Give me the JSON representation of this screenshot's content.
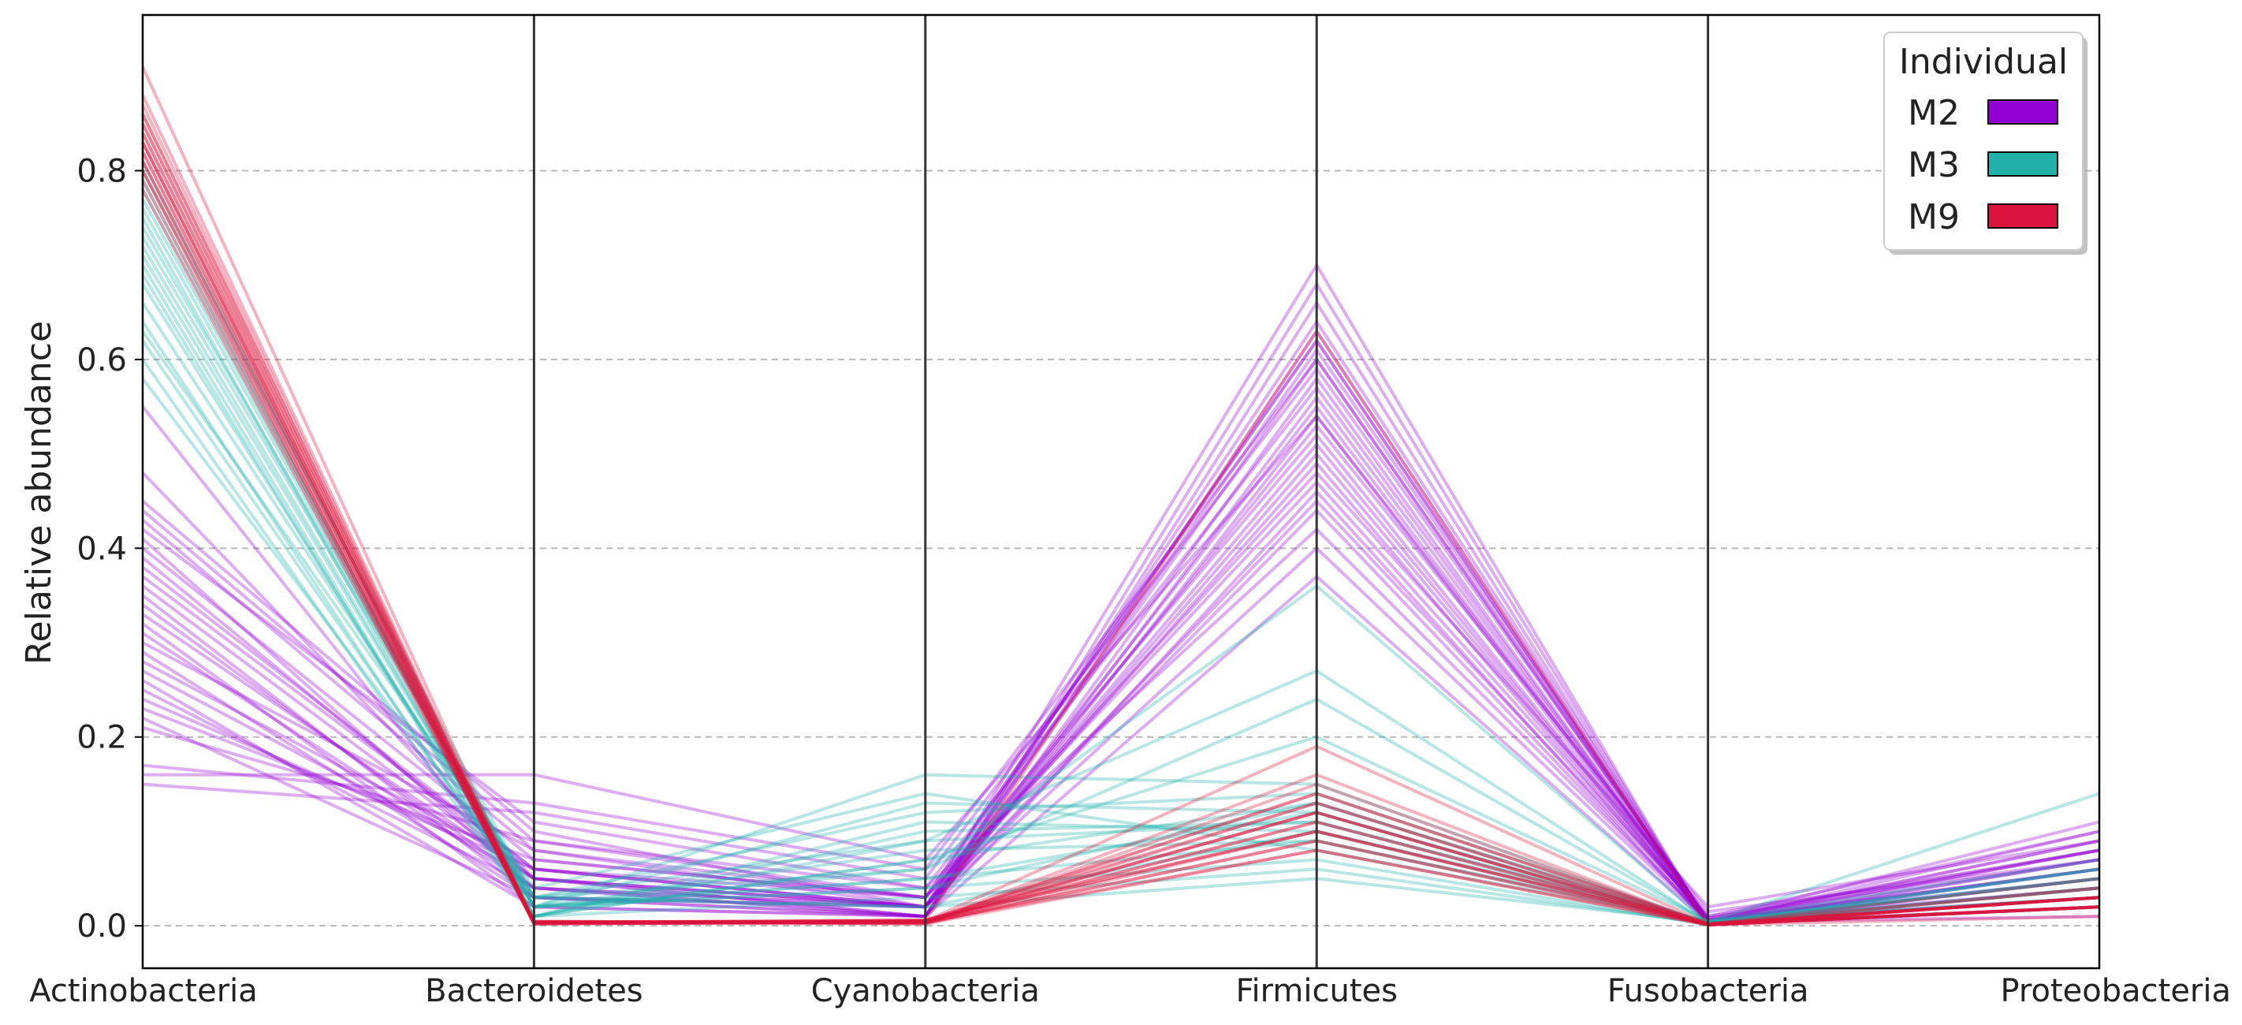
{
  "chart_data": {
    "type": "parallel-coordinates",
    "title": "",
    "xlabel": "",
    "ylabel": "Relative abundance",
    "categories": [
      "Actinobacteria",
      "Bacteroidetes",
      "Cyanobacteria",
      "Firmicutes",
      "Fusobacteria",
      "Proteobacteria"
    ],
    "ylim": [
      -0.045,
      0.965
    ],
    "yticks": [
      "0.0",
      "0.2",
      "0.4",
      "0.6",
      "0.8"
    ],
    "grid": "horizontal-dashed",
    "legend": {
      "title": "Individual",
      "placement": "top-right",
      "entries": [
        {
          "name": "M2",
          "color": "#9400D3"
        },
        {
          "name": "M3",
          "color": "#20B2AA"
        },
        {
          "name": "M9",
          "color": "#DC143C"
        }
      ]
    },
    "series": [
      {
        "name": "M2",
        "color": "#9400D3",
        "values": [
          [
            0.45,
            0.1,
            0.02,
            0.45,
            0.01,
            0.08
          ],
          [
            0.44,
            0.09,
            0.03,
            0.47,
            0.008,
            0.07
          ],
          [
            0.43,
            0.08,
            0.02,
            0.5,
            0.005,
            0.09
          ],
          [
            0.42,
            0.11,
            0.04,
            0.42,
            0.006,
            0.06
          ],
          [
            0.4,
            0.07,
            0.03,
            0.52,
            0.004,
            0.1
          ],
          [
            0.37,
            0.06,
            0.02,
            0.55,
            0.003,
            0.08
          ],
          [
            0.36,
            0.05,
            0.01,
            0.58,
            0.002,
            0.07
          ],
          [
            0.34,
            0.04,
            0.02,
            0.6,
            0.003,
            0.05
          ],
          [
            0.3,
            0.08,
            0.03,
            0.62,
            0.004,
            0.06
          ],
          [
            0.28,
            0.06,
            0.02,
            0.64,
            0.005,
            0.04
          ],
          [
            0.27,
            0.05,
            0.01,
            0.66,
            0.002,
            0.03
          ],
          [
            0.25,
            0.04,
            0.02,
            0.7,
            0.001,
            0.02
          ],
          [
            0.23,
            0.07,
            0.03,
            0.62,
            0.003,
            0.07
          ],
          [
            0.22,
            0.03,
            0.01,
            0.68,
            0.002,
            0.06
          ],
          [
            0.21,
            0.09,
            0.04,
            0.57,
            0.004,
            0.09
          ],
          [
            0.17,
            0.13,
            0.06,
            0.6,
            0.006,
            0.11
          ],
          [
            0.16,
            0.16,
            0.07,
            0.54,
            0.01,
            0.1
          ],
          [
            0.15,
            0.12,
            0.05,
            0.59,
            0.008,
            0.08
          ],
          [
            0.48,
            0.05,
            0.02,
            0.4,
            0.005,
            0.06
          ],
          [
            0.55,
            0.03,
            0.01,
            0.37,
            0.003,
            0.05
          ],
          [
            0.38,
            0.06,
            0.03,
            0.48,
            0.02,
            0.09
          ],
          [
            0.33,
            0.05,
            0.02,
            0.53,
            0.015,
            0.07
          ],
          [
            0.31,
            0.04,
            0.01,
            0.56,
            0.004,
            0.08
          ],
          [
            0.29,
            0.03,
            0.02,
            0.61,
            0.006,
            0.05
          ],
          [
            0.26,
            0.02,
            0.01,
            0.63,
            0.003,
            0.04
          ],
          [
            0.24,
            0.06,
            0.02,
            0.51,
            0.005,
            0.03
          ],
          [
            0.41,
            0.04,
            0.01,
            0.46,
            0.002,
            0.02
          ],
          [
            0.39,
            0.05,
            0.02,
            0.44,
            0.004,
            0.01
          ],
          [
            0.35,
            0.03,
            0.02,
            0.49,
            0.003,
            0.06
          ],
          [
            0.32,
            0.02,
            0.01,
            0.54,
            0.002,
            0.05
          ]
        ]
      },
      {
        "name": "M3",
        "color": "#20B2AA",
        "values": [
          [
            0.8,
            0.03,
            0.02,
            0.1,
            0.005,
            0.05
          ],
          [
            0.78,
            0.02,
            0.05,
            0.12,
            0.003,
            0.04
          ],
          [
            0.76,
            0.02,
            0.08,
            0.09,
            0.002,
            0.06
          ],
          [
            0.75,
            0.01,
            0.1,
            0.11,
            0.004,
            0.03
          ],
          [
            0.73,
            0.03,
            0.12,
            0.14,
            0.003,
            0.05
          ],
          [
            0.72,
            0.02,
            0.16,
            0.15,
            0.002,
            0.04
          ],
          [
            0.7,
            0.01,
            0.07,
            0.2,
            0.005,
            0.07
          ],
          [
            0.68,
            0.02,
            0.06,
            0.24,
            0.004,
            0.06
          ],
          [
            0.66,
            0.03,
            0.09,
            0.27,
            0.003,
            0.05
          ],
          [
            0.64,
            0.01,
            0.11,
            0.1,
            0.002,
            0.04
          ],
          [
            0.62,
            0.02,
            0.04,
            0.13,
            0.003,
            0.03
          ],
          [
            0.6,
            0.01,
            0.03,
            0.06,
            0.002,
            0.02
          ],
          [
            0.58,
            0.03,
            0.02,
            0.05,
            0.004,
            0.14
          ],
          [
            0.63,
            0.04,
            0.14,
            0.08,
            0.003,
            0.05
          ],
          [
            0.77,
            0.02,
            0.13,
            0.12,
            0.002,
            0.06
          ],
          [
            0.79,
            0.01,
            0.09,
            0.11,
            0.002,
            0.04
          ],
          [
            0.74,
            0.03,
            0.06,
            0.36,
            0.003,
            0.05
          ],
          [
            0.71,
            0.02,
            0.05,
            0.09,
            0.004,
            0.03
          ],
          [
            0.69,
            0.01,
            0.07,
            0.13,
            0.002,
            0.04
          ],
          [
            0.81,
            0.02,
            0.04,
            0.07,
            0.001,
            0.02
          ]
        ]
      },
      {
        "name": "M9",
        "color": "#DC143C",
        "values": [
          [
            0.91,
            0.004,
            0.004,
            0.08,
            0.001,
            0.03
          ],
          [
            0.88,
            0.003,
            0.003,
            0.09,
            0.001,
            0.02
          ],
          [
            0.86,
            0.005,
            0.002,
            0.1,
            0.002,
            0.03
          ],
          [
            0.85,
            0.004,
            0.005,
            0.12,
            0.001,
            0.02
          ],
          [
            0.84,
            0.003,
            0.006,
            0.13,
            0.001,
            0.03
          ],
          [
            0.83,
            0.002,
            0.004,
            0.14,
            0.002,
            0.02
          ],
          [
            0.82,
            0.004,
            0.003,
            0.15,
            0.001,
            0.03
          ],
          [
            0.81,
            0.003,
            0.005,
            0.19,
            0.002,
            0.04
          ],
          [
            0.8,
            0.002,
            0.004,
            0.11,
            0.001,
            0.02
          ],
          [
            0.79,
            0.003,
            0.006,
            0.1,
            0.001,
            0.03
          ],
          [
            0.78,
            0.004,
            0.003,
            0.09,
            0.002,
            0.02
          ],
          [
            0.84,
            0.003,
            0.002,
            0.08,
            0.001,
            0.01
          ],
          [
            0.86,
            0.002,
            0.004,
            0.12,
            0.001,
            0.02
          ],
          [
            0.83,
            0.003,
            0.005,
            0.14,
            0.002,
            0.05
          ],
          [
            0.82,
            0.004,
            0.003,
            0.13,
            0.001,
            0.03
          ],
          [
            0.81,
            0.002,
            0.004,
            0.16,
            0.001,
            0.02
          ],
          [
            0.85,
            0.003,
            0.006,
            0.1,
            0.002,
            0.03
          ],
          [
            0.8,
            0.004,
            0.004,
            0.12,
            0.001,
            0.04
          ],
          [
            0.87,
            0.003,
            0.003,
            0.11,
            0.001,
            0.02
          ],
          [
            0.83,
            0.004,
            0.005,
            0.63,
            0.001,
            0.03
          ]
        ]
      }
    ]
  }
}
